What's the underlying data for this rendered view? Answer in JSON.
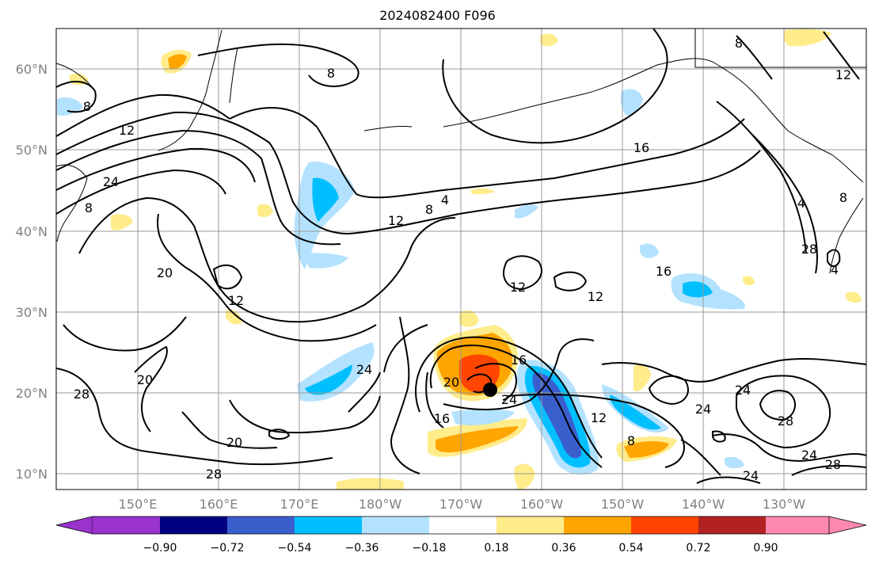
{
  "title": "2024082400 F096",
  "lat_labels": [
    "60°N",
    "50°N",
    "40°N",
    "30°N",
    "20°N",
    "10°N"
  ],
  "lon_labels": [
    "150°E",
    "160°E",
    "170°E",
    "180°W",
    "170°W",
    "160°W",
    "150°W",
    "140°W",
    "130°W"
  ],
  "colorbar": {
    "tick_labels": [
      "−0.90",
      "−0.72",
      "−0.54",
      "−0.36",
      "−0.18",
      "0.18",
      "0.36",
      "0.54",
      "0.72",
      "0.90"
    ],
    "colors": [
      "#9933cc",
      "#000080",
      "#3a5fcd",
      "#00bfff",
      "#b3e2ff",
      "#ffffff",
      "#ffec8b",
      "#ffa500",
      "#ff4500",
      "#b22222",
      "#ff88b0"
    ],
    "extend": "both"
  },
  "contour_labels": [
    "8",
    "8",
    "12",
    "24",
    "8",
    "4",
    "8",
    "12",
    "16",
    "12",
    "8",
    "4",
    "8",
    "4",
    "16",
    "12",
    "12",
    "20",
    "12",
    "16",
    "20",
    "24",
    "28",
    "28",
    "20",
    "24",
    "16",
    "12",
    "8",
    "24",
    "24",
    "28",
    "24",
    "24",
    "28",
    "20",
    "28",
    "8"
  ],
  "storm_marker": "black-dot"
}
